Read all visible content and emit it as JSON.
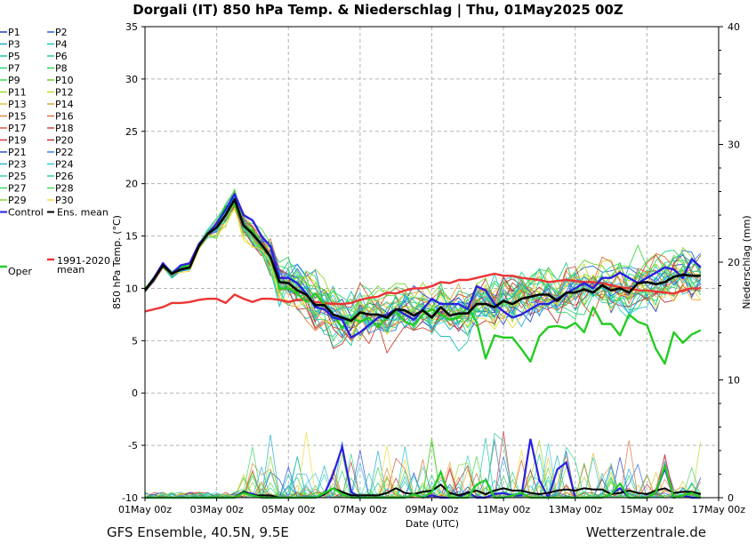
{
  "header": {
    "title": "Dorgali  (IT)  850 hPa Temp. & Niederschlag | Thu, 01May2025 00Z"
  },
  "footer": {
    "left": "GFS Ensemble, 40.5N, 9.5E",
    "right": "Wetterzentrale.de"
  },
  "chart_data": {
    "type": "line",
    "title": "Dorgali  (IT)  850 hPa Temp. & Niederschlag | Thu, 01May2025 00Z",
    "xlabel": "Date (UTC)",
    "ylabel": "850 hPa Temp. (°C)",
    "y2label": "Niederschlag (mm)",
    "ylim": [
      -10,
      35
    ],
    "y2lim": [
      0,
      40
    ],
    "yticks": [
      35,
      30,
      25,
      20,
      15,
      10,
      5,
      0,
      -5,
      -10
    ],
    "y2ticks": [
      40,
      30,
      20,
      10,
      0
    ],
    "xlim": [
      0,
      384
    ],
    "x_step_hours": 6,
    "xticks": [
      {
        "hour": 0,
        "label": "01May 00z"
      },
      {
        "hour": 48,
        "label": "03May 00z"
      },
      {
        "hour": 96,
        "label": "05May 00z"
      },
      {
        "hour": 144,
        "label": "07May 00z"
      },
      {
        "hour": 192,
        "label": "09May 00z"
      },
      {
        "hour": 240,
        "label": "11May 00z"
      },
      {
        "hour": 288,
        "label": "13May 00z"
      },
      {
        "hour": 336,
        "label": "15May 00z"
      },
      {
        "hour": 384,
        "label": "17May 00z"
      }
    ],
    "grid": true,
    "legend": {
      "members": [
        "P1",
        "P2",
        "P3",
        "P4",
        "P5",
        "P6",
        "P7",
        "P8",
        "P9",
        "P10",
        "P11",
        "P12",
        "P13",
        "P14",
        "P15",
        "P16",
        "P17",
        "P18",
        "P19",
        "P20",
        "P21",
        "P22",
        "P23",
        "P24",
        "P25",
        "P26",
        "P27",
        "P28",
        "P29",
        "P30"
      ],
      "control": "Control",
      "ens_mean": "Ens. mean",
      "oper": "Oper",
      "clim": [
        "1991-2020",
        "mean"
      ]
    },
    "member_colors": [
      "#1a3fc4",
      "#2266dd",
      "#1ba9c9",
      "#21c1c0",
      "#18c7a8",
      "#20cf92",
      "#28d27a",
      "#2fd35d",
      "#3fd640",
      "#62d42a",
      "#9ad828",
      "#c9d52a",
      "#e0c23a",
      "#e4a33a",
      "#e08a3a",
      "#d9703a",
      "#d65d3a",
      "#cf4a38",
      "#c83b3f",
      "#b8323d",
      "#2a52d8",
      "#2f86e0",
      "#35b0e2",
      "#35c8dc",
      "#30d0b4",
      "#2cd58e",
      "#38d666",
      "#49d84a",
      "#7cd93a",
      "#f0dc3a"
    ],
    "series": [
      {
        "name": "Control",
        "color": "#2a20e0",
        "values": [
          9.8,
          11,
          12.4,
          11.4,
          12.2,
          12.4,
          14.2,
          15.2,
          16.2,
          17.5,
          19,
          17,
          16.5,
          15,
          14,
          11,
          11,
          10.5,
          9.5,
          8.2,
          8,
          7.2,
          7,
          5.3,
          5.8,
          6.5,
          7.2,
          7.5,
          8,
          7.5,
          7,
          8,
          9,
          8.5,
          8.5,
          8.5,
          8,
          10.2,
          9.8,
          8.5,
          7.8,
          7.2,
          7.5,
          8,
          8.5,
          8.5,
          9,
          9.5,
          10,
          10.5,
          10,
          11,
          11,
          11.5,
          11,
          10.5,
          11,
          11.5,
          12,
          11.8,
          11,
          12.8,
          12
        ]
      },
      {
        "name": "Ens. mean",
        "color": "#000000",
        "values": [
          9.8,
          10.9,
          12.2,
          11.4,
          11.8,
          12,
          14,
          15.2,
          15.8,
          17,
          18.5,
          16,
          15.2,
          14.2,
          13,
          10.6,
          10.5,
          9.8,
          9.4,
          8.4,
          8.4,
          7.5,
          7.2,
          6.9,
          7.7,
          7.5,
          7.5,
          7.2,
          8,
          7.9,
          7.4,
          7.9,
          7.2,
          8.2,
          7.4,
          7.6,
          7.6,
          8.5,
          8.5,
          8.2,
          8.8,
          8.5,
          9,
          9.2,
          9.4,
          9.4,
          8.8,
          9.6,
          9.6,
          9.9,
          9.6,
          10.3,
          9.8,
          10,
          9.6,
          10.5,
          10.6,
          10.4,
          10.6,
          11.1,
          11.3,
          11.2,
          11.2
        ]
      },
      {
        "name": "Oper",
        "color": "#22cc22",
        "values": [
          9.9,
          11,
          12.3,
          11.5,
          12,
          12.3,
          14.1,
          15.3,
          16,
          17.8,
          18,
          16,
          15.5,
          14,
          13,
          10,
          10,
          9.5,
          8.7,
          9.5,
          8.5,
          7.5,
          6.2,
          7.2,
          6.8,
          7.2,
          6.3,
          7.2,
          7.8,
          6.8,
          6.5,
          7.5,
          8,
          7.5,
          7,
          7.2,
          8.2,
          6.8,
          3.3,
          5.5,
          5.3,
          5.3,
          4.2,
          3,
          5.4,
          6.3,
          6.4,
          6.2,
          6.7,
          5.8,
          8.2,
          6.6,
          6.6,
          5.5,
          7.5,
          6.8,
          6.5,
          4.2,
          2.8,
          5.8,
          4.8,
          5.6,
          6
        ]
      },
      {
        "name": "1991-2020 mean",
        "color": "#ee3333",
        "values": [
          7.8,
          8,
          8.2,
          8.6,
          8.6,
          8.7,
          8.9,
          9,
          9,
          8.6,
          9.4,
          9,
          8.7,
          9,
          9,
          8.9,
          8.7,
          8.9,
          8.9,
          8.7,
          8.6,
          8.5,
          8.5,
          8.6,
          8.9,
          9.1,
          9.2,
          9.6,
          9.5,
          9.8,
          10,
          10,
          10.2,
          10.6,
          10.5,
          10.8,
          10.8,
          11,
          11.2,
          11.4,
          11.2,
          11.2,
          11,
          10.9,
          10.8,
          10.6,
          10.7,
          10.8,
          10.7,
          10.6,
          10.6,
          10.5,
          10.3,
          10.1,
          10,
          9.8,
          9.8,
          9.7,
          9.6,
          9.5,
          9.8,
          10,
          10
        ]
      }
    ],
    "precip_series": [
      {
        "name": "Control",
        "color": "#2a20e0",
        "values": [
          0,
          0,
          0,
          0,
          0,
          0,
          0,
          0,
          0,
          0,
          0,
          0.5,
          0.3,
          0,
          0,
          0,
          0,
          0,
          0,
          0,
          0.3,
          2,
          4.3,
          0.5,
          0,
          0,
          0,
          0,
          0,
          0,
          0.3,
          0,
          0.2,
          0,
          0,
          0,
          0.5,
          0,
          0,
          0.3,
          0.4,
          0.2,
          0.2,
          5,
          1.5,
          0,
          2.4,
          3,
          0,
          0,
          0,
          0,
          0.3,
          0.8,
          0,
          0,
          0,
          0.5,
          2.5,
          0,
          0.2,
          0,
          0
        ]
      },
      {
        "name": "Ens. mean",
        "color": "#000000",
        "values": [
          0,
          0,
          0,
          0,
          0,
          0,
          0,
          0,
          0,
          0,
          0,
          0.5,
          0.2,
          0.2,
          0.2,
          0,
          0,
          0,
          0,
          0,
          0.3,
          0.8,
          0.5,
          0.2,
          0.2,
          0.2,
          0.2,
          0.4,
          0.8,
          0.4,
          0.3,
          0.5,
          0.6,
          1.1,
          0.4,
          0.2,
          0.4,
          0.6,
          0.3,
          0.6,
          0.8,
          0.6,
          0.6,
          0.4,
          0.3,
          0.4,
          0.6,
          0.7,
          0.6,
          0.8,
          0.7,
          0.7,
          0.3,
          0.4,
          0.6,
          0.4,
          0.3,
          0.6,
          0.8,
          0.4,
          0.5,
          0.5,
          0.3
        ]
      },
      {
        "name": "Oper",
        "color": "#22cc22",
        "values": [
          0,
          0,
          0,
          0,
          0,
          0,
          0,
          0,
          0,
          0,
          0,
          0.4,
          0.2,
          0,
          0,
          0,
          0,
          0,
          0,
          0,
          0.4,
          0.8,
          0.3,
          0,
          0,
          0,
          0,
          0,
          0,
          0,
          0.3,
          0,
          0.5,
          2.2,
          0,
          0,
          0,
          1.1,
          1.5,
          0,
          0,
          0.2,
          0.4,
          0,
          0,
          0,
          0,
          0,
          0,
          0,
          0,
          0,
          0.3,
          1.2,
          0,
          0,
          0,
          0.5,
          2.7,
          0,
          0.2,
          0.4,
          0
        ]
      }
    ]
  }
}
